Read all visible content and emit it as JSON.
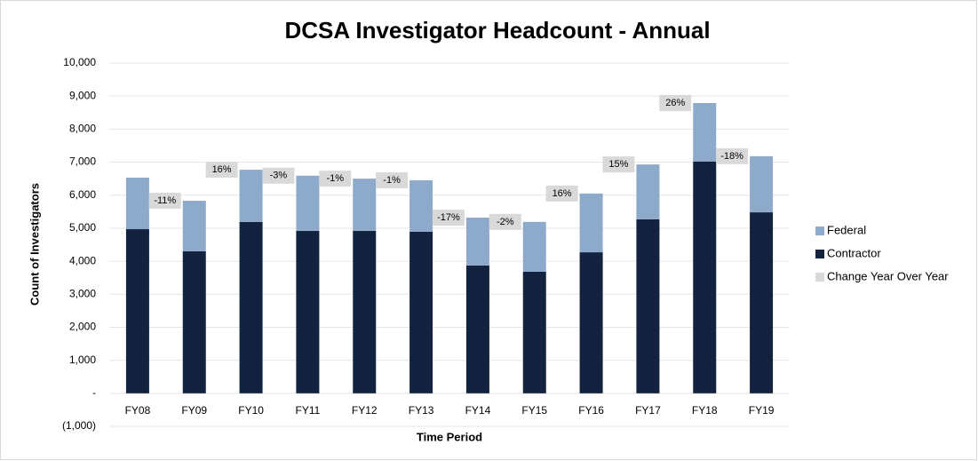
{
  "chart_data": {
    "type": "stacked_bar",
    "title": "DCSA Investigator Headcount - Annual",
    "xlabel": "Time Period",
    "ylabel": "Count of Investigators",
    "categories": [
      "FY08",
      "FY09",
      "FY10",
      "FY11",
      "FY12",
      "FY13",
      "FY14",
      "FY15",
      "FY16",
      "FY17",
      "FY18",
      "FY19"
    ],
    "series": [
      {
        "name": "Federal",
        "color": "#8eaacb",
        "values": [
          1560,
          1530,
          1580,
          1670,
          1580,
          1560,
          1450,
          1510,
          1780,
          1660,
          1770,
          1700
        ]
      },
      {
        "name": "Contractor",
        "color": "#12223f",
        "values": [
          4970,
          4300,
          5190,
          4920,
          4920,
          4890,
          3870,
          3680,
          4270,
          5270,
          7020,
          5480
        ]
      }
    ],
    "change": {
      "name": "Change Year Over Year",
      "color": "#d9d9d9",
      "values": [
        null,
        -11,
        16,
        -3,
        -1,
        -1,
        -17,
        -2,
        16,
        15,
        26,
        -18
      ],
      "value_labels": [
        null,
        "-11%",
        "16%",
        "-3%",
        "-1%",
        "-1%",
        "-17%",
        "-2%",
        "16%",
        "15%",
        "26%",
        "-18%"
      ]
    },
    "ylim": [
      -1000,
      10000
    ],
    "yticks": [
      {
        "value": -1000,
        "label": "(1,000)"
      },
      {
        "value": 0,
        "label": "-"
      },
      {
        "value": 1000,
        "label": "1,000"
      },
      {
        "value": 2000,
        "label": "2,000"
      },
      {
        "value": 3000,
        "label": "3,000"
      },
      {
        "value": 4000,
        "label": "4,000"
      },
      {
        "value": 5000,
        "label": "5,000"
      },
      {
        "value": 6000,
        "label": "6,000"
      },
      {
        "value": 7000,
        "label": "7,000"
      },
      {
        "value": 8000,
        "label": "8,000"
      },
      {
        "value": 9000,
        "label": "9,000"
      },
      {
        "value": 10000,
        "label": "10,000"
      }
    ],
    "grid": true,
    "legend": "right"
  }
}
